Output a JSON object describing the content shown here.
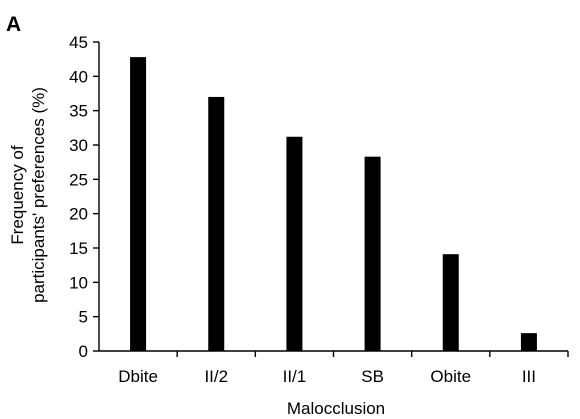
{
  "panel_label": "A",
  "colors": {
    "bar": "#000000",
    "axis": "#000000",
    "background": "#ffffff"
  },
  "chart_data": {
    "type": "bar",
    "categories": [
      "Dbite",
      "II/2",
      "II/1",
      "SB",
      "Obite",
      "III"
    ],
    "values": [
      42.8,
      37.0,
      31.2,
      28.3,
      14.1,
      2.6
    ],
    "title": "",
    "xlabel": "Malocclusion",
    "ylabel_lines": [
      "Frequency of",
      "participants' preferences (%)"
    ],
    "ylim": [
      0,
      45
    ],
    "yticks": [
      0,
      5,
      10,
      15,
      20,
      25,
      30,
      35,
      40,
      45
    ],
    "grid": false,
    "legend": "none"
  }
}
